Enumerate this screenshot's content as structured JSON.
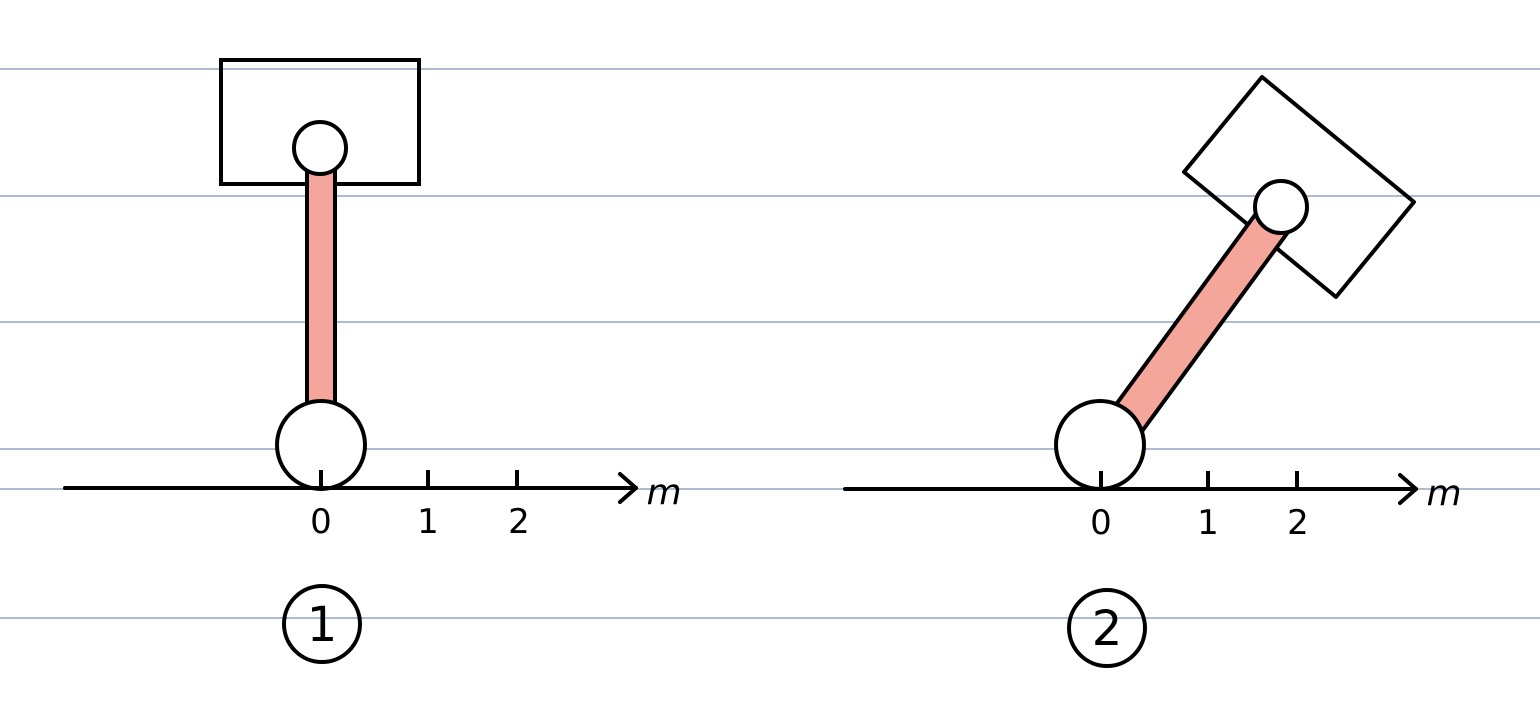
{
  "colors": {
    "ruled_line": "#aebcce",
    "stroke": "#000000",
    "arm_fill": "#f4a69b",
    "background": "#ffffff"
  },
  "diagrams": [
    {
      "label": "1",
      "axis": {
        "tick_labels": [
          "0",
          "1",
          "2"
        ],
        "unit": "m"
      },
      "arm_angle_deg_from_horizontal": 90
    },
    {
      "label": "2",
      "axis": {
        "tick_labels": [
          "0",
          "1",
          "2"
        ],
        "unit": "m"
      },
      "arm_angle_deg_from_horizontal": 50
    }
  ]
}
